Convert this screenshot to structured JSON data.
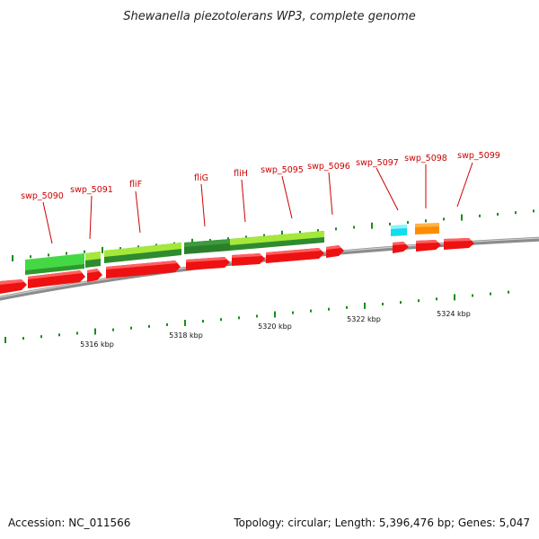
{
  "title": "Shewanella piezotolerans WP3, complete genome",
  "footer": {
    "accession": "Accession: NC_011566",
    "summary": "Topology: circular; Length: 5,396,476 bp; Genes: 5,047"
  },
  "colors": {
    "cds": "#ee1111",
    "gene_light": "#99e033",
    "gene_dark": "#2e8b2e",
    "gene_green": "#33cc33",
    "gene_cyan": "#11dded",
    "gene_orange": "#ff8c00",
    "label": "#cc0000",
    "backbone": "#888888",
    "tick": "#1a8c1a"
  },
  "gene_labels": [
    "swp_5090",
    "swp_5091",
    "fliF",
    "fliG",
    "fliH",
    "swp_5095",
    "swp_5096",
    "swp_5097",
    "swp_5098",
    "swp_5099"
  ],
  "kbp_labels": [
    "5316 kbp",
    "5318 kbp",
    "5320 kbp",
    "5322 kbp",
    "5324 kbp"
  ]
}
